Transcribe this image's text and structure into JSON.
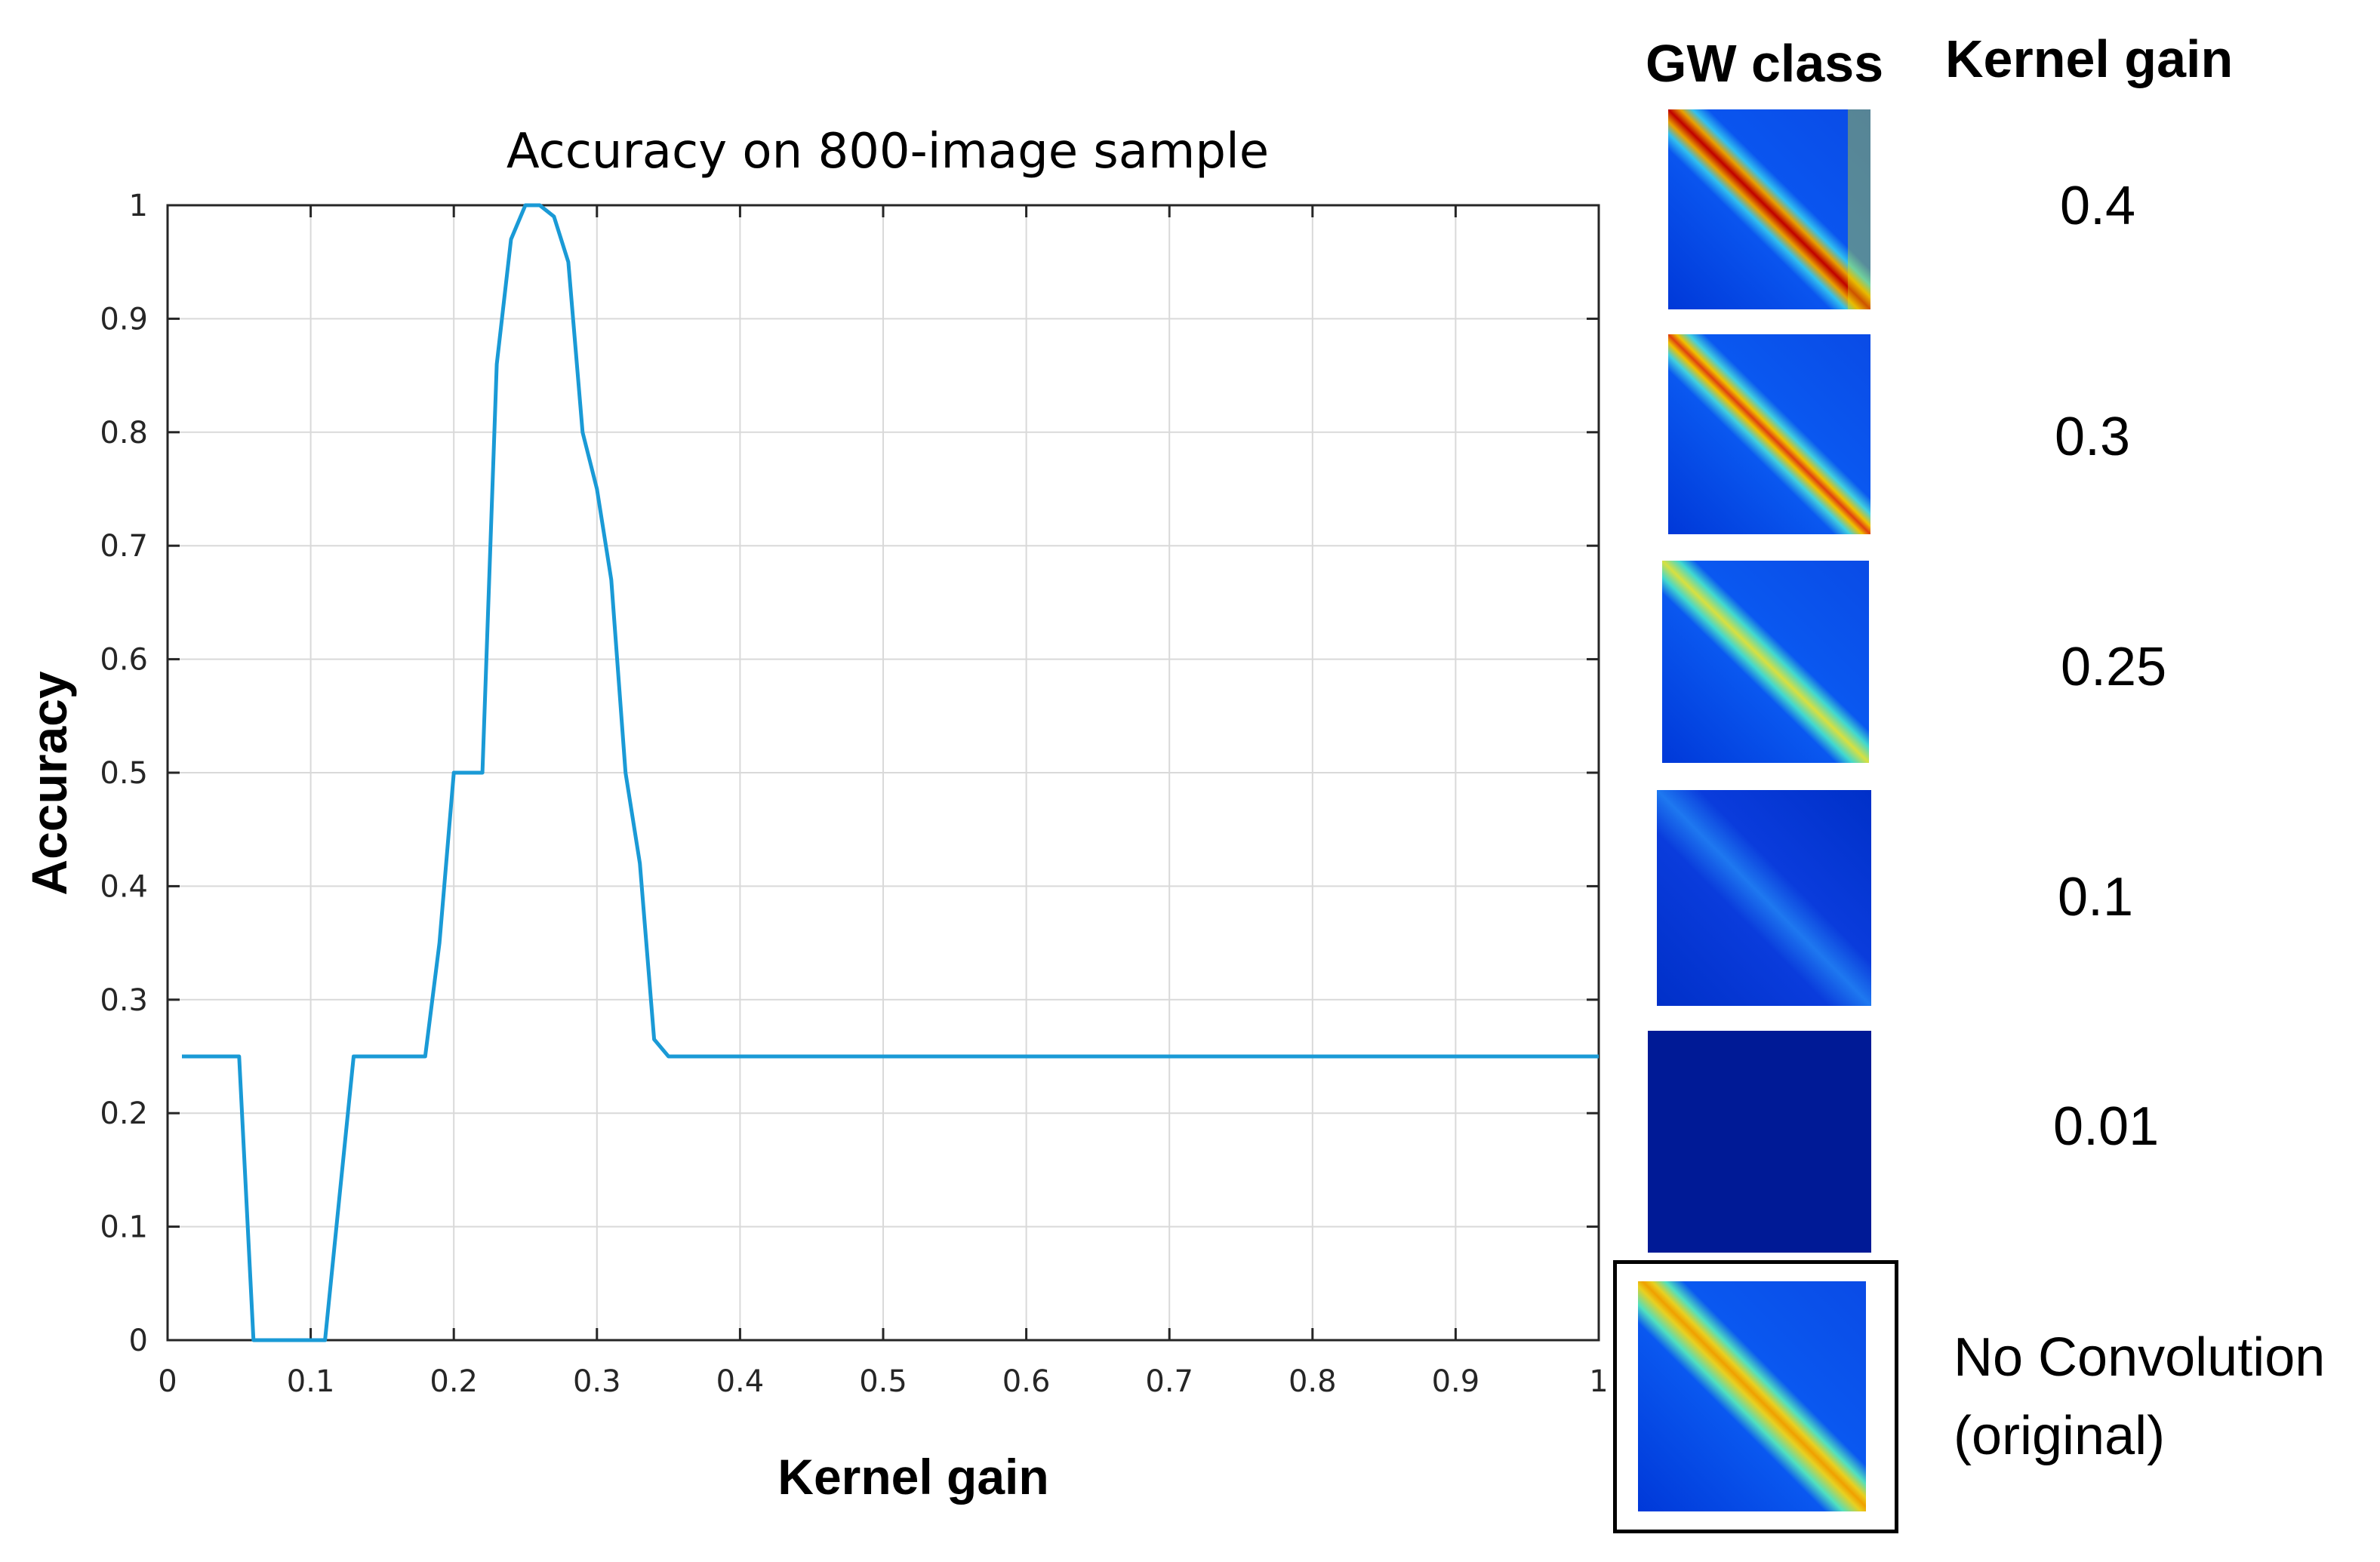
{
  "chart_data": {
    "type": "line",
    "title": "Accuracy on 800-image sample",
    "xlabel": "Kernel gain",
    "ylabel": "Accuracy",
    "xlim": [
      0,
      1
    ],
    "ylim": [
      0,
      1
    ],
    "grid": true,
    "x_ticks": [
      0,
      0.1,
      0.2,
      0.3,
      0.4,
      0.5,
      0.6,
      0.7,
      0.8,
      0.9,
      1
    ],
    "x_tick_labels": [
      "0",
      "0.1",
      "0.2",
      "0.3",
      "0.4",
      "0.5",
      "0.6",
      "0.7",
      "0.8",
      "0.9",
      "1"
    ],
    "y_ticks": [
      0,
      0.1,
      0.2,
      0.3,
      0.4,
      0.5,
      0.6,
      0.7,
      0.8,
      0.9,
      1
    ],
    "y_tick_labels": [
      "0",
      "0.1",
      "0.2",
      "0.3",
      "0.4",
      "0.5",
      "0.6",
      "0.7",
      "0.8",
      "0.9",
      "1"
    ],
    "line_color": "#1a9ad6",
    "series": [
      {
        "name": "Accuracy",
        "x": [
          0.01,
          0.05,
          0.06,
          0.07,
          0.08,
          0.09,
          0.1,
          0.11,
          0.12,
          0.13,
          0.14,
          0.15,
          0.16,
          0.17,
          0.18,
          0.19,
          0.2,
          0.21,
          0.22,
          0.23,
          0.24,
          0.25,
          0.26,
          0.27,
          0.28,
          0.29,
          0.3,
          0.31,
          0.32,
          0.33,
          0.34,
          0.35,
          0.4,
          0.5,
          0.6,
          0.7,
          0.8,
          0.9,
          1.0
        ],
        "values": [
          0.25,
          0.25,
          0.0,
          0.0,
          0.0,
          0.0,
          0.0,
          0.0,
          0.125,
          0.25,
          0.25,
          0.25,
          0.25,
          0.25,
          0.25,
          0.35,
          0.5,
          0.5,
          0.5,
          0.86,
          0.97,
          1.0,
          1.0,
          0.99,
          0.95,
          0.8,
          0.75,
          0.67,
          0.5,
          0.42,
          0.265,
          0.25,
          0.25,
          0.25,
          0.25,
          0.25,
          0.25,
          0.25,
          0.25
        ]
      }
    ]
  },
  "side_panel": {
    "header_class": "GW class",
    "header_gain": "Kernel gain",
    "rows": [
      {
        "gain": "0.4",
        "thumb": "gw-class-image-gain-0.4"
      },
      {
        "gain": "0.3",
        "thumb": "gw-class-image-gain-0.3"
      },
      {
        "gain": "0.25",
        "thumb": "gw-class-image-gain-0.25"
      },
      {
        "gain": "0.1",
        "thumb": "gw-class-image-gain-0.1"
      },
      {
        "gain": "0.01",
        "thumb": "gw-class-image-gain-0.01"
      },
      {
        "gain_line1": "No Convolution",
        "gain_line2": "(original)",
        "thumb": "gw-class-image-original"
      }
    ]
  }
}
